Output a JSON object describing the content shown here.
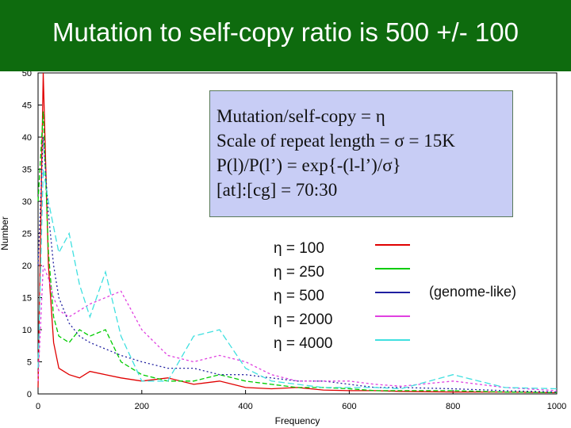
{
  "slide": {
    "title": "Mutation to self-copy ratio is 500 +/- 100"
  },
  "info_box": {
    "lines": [
      "Mutation/self-copy = η",
      "Scale of repeat length = σ = 15K",
      " P(l)/P(l’) = exp{-(l-l’)/σ}",
      "[at]:[cg] = 70:30"
    ]
  },
  "annotation": "(genome-like)",
  "chart_data": {
    "type": "line",
    "xlabel": "Frequency",
    "ylabel": "Number",
    "xlim": [
      0,
      1000
    ],
    "ylim": [
      0,
      50
    ],
    "x_ticks": [
      "0",
      "200",
      "400",
      "600",
      "800",
      "1000"
    ],
    "y_ticks": [
      "0",
      "5",
      "10",
      "15",
      "20",
      "25",
      "30",
      "35",
      "40",
      "45",
      "50"
    ],
    "series": [
      {
        "name": "η = 100",
        "color": "#e00000",
        "dash": "",
        "x": [
          0,
          10,
          20,
          30,
          40,
          60,
          80,
          100,
          130,
          160,
          200,
          250,
          300,
          350,
          400,
          450,
          500,
          550,
          600,
          650,
          700,
          800,
          900,
          1000
        ],
        "y": [
          1,
          50,
          20,
          8,
          4,
          3,
          2.5,
          3.5,
          3,
          2.5,
          2,
          2.5,
          1.5,
          2,
          1,
          0.8,
          1,
          0.6,
          0.5,
          0.5,
          0.4,
          0.3,
          0.3,
          0.2
        ]
      },
      {
        "name": "η = 250",
        "color": "#00cc00",
        "dash": "6,3",
        "x": [
          0,
          10,
          20,
          30,
          40,
          60,
          80,
          100,
          130,
          160,
          200,
          250,
          300,
          350,
          400,
          450,
          500,
          550,
          600,
          650,
          700,
          800,
          900,
          1000
        ],
        "y": [
          30,
          44,
          22,
          12,
          9,
          8,
          10,
          9,
          10,
          5,
          3,
          2,
          2,
          3,
          2,
          1.5,
          1,
          1,
          0.8,
          0.5,
          0.5,
          0.5,
          0.3,
          0.2
        ]
      },
      {
        "name": "η = 500",
        "color": "#2020a0",
        "dash": "2,3",
        "x": [
          0,
          10,
          20,
          30,
          40,
          60,
          80,
          100,
          130,
          160,
          200,
          250,
          300,
          350,
          400,
          450,
          500,
          550,
          600,
          650,
          700,
          800,
          900,
          1000
        ],
        "y": [
          20,
          40,
          28,
          20,
          15,
          11,
          9,
          8,
          7,
          6,
          5,
          4,
          4,
          3,
          3,
          2.5,
          2,
          2,
          1.5,
          1,
          1,
          0.8,
          0.5,
          0.3
        ]
      },
      {
        "name": "η = 2000",
        "color": "#e040e0",
        "dash": "3,3",
        "x": [
          0,
          10,
          20,
          30,
          40,
          60,
          80,
          100,
          130,
          160,
          200,
          250,
          300,
          350,
          400,
          450,
          500,
          550,
          600,
          650,
          700,
          800,
          900,
          1000
        ],
        "y": [
          2,
          20,
          18,
          15,
          13,
          12,
          13,
          14,
          15,
          16,
          10,
          6,
          5,
          6,
          5,
          3,
          2,
          2,
          2,
          1.5,
          1.2,
          2,
          1,
          0.5
        ]
      },
      {
        "name": "η = 4000",
        "color": "#40e0e0",
        "dash": "8,4",
        "x": [
          0,
          10,
          20,
          30,
          40,
          60,
          80,
          100,
          130,
          160,
          200,
          250,
          300,
          350,
          400,
          450,
          500,
          550,
          600,
          650,
          700,
          800,
          900,
          1000
        ],
        "y": [
          4,
          35,
          30,
          26,
          22,
          25,
          17,
          12,
          19,
          9,
          2,
          2,
          9,
          10,
          4,
          2,
          1.5,
          1,
          1,
          1,
          0.8,
          3,
          1,
          0.8
        ]
      }
    ]
  }
}
